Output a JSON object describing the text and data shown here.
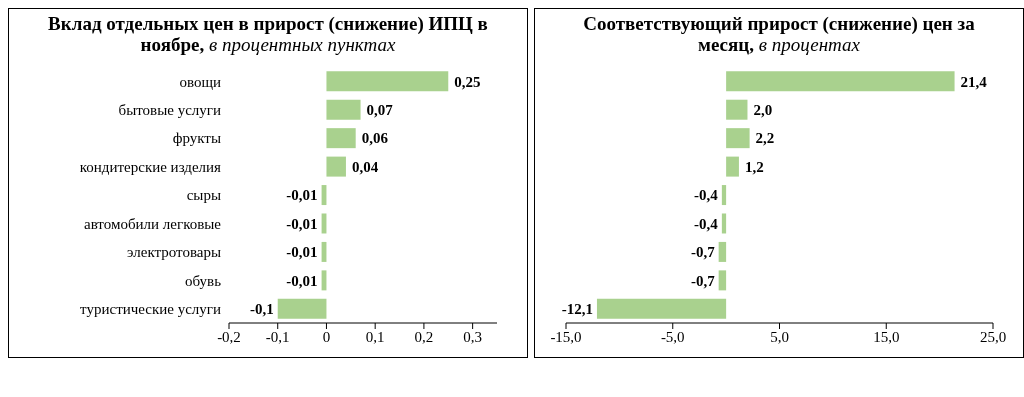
{
  "chart_data": [
    {
      "type": "bar",
      "orientation": "horizontal",
      "title": "Вклад отдельных цен в прирост (снижение) ИПЦ в ноябре,",
      "subtitle": "в процентных пунктах",
      "categories": [
        "овощи",
        "бытовые услуги",
        "фрукты",
        "кондитерские изделия",
        "сыры",
        "автомобили легковые",
        "электротовары",
        "обувь",
        "туристические услуги"
      ],
      "values": [
        0.25,
        0.07,
        0.06,
        0.04,
        -0.01,
        -0.01,
        -0.01,
        -0.01,
        -0.1
      ],
      "value_labels": [
        "0,25",
        "0,07",
        "0,06",
        "0,04",
        "-0,01",
        "-0,01",
        "-0,01",
        "-0,01",
        "-0,1"
      ],
      "color": "#a9d18e",
      "xlim": [
        -0.2,
        0.35
      ],
      "xticks": [
        {
          "value": -0.2,
          "label": "-0,2"
        },
        {
          "value": -0.1,
          "label": "-0,1"
        },
        0,
        {
          "value": 0.1,
          "label": "0,1"
        },
        {
          "value": 0.2,
          "label": "0,2"
        },
        {
          "value": 0.3,
          "label": "0,3"
        }
      ],
      "grid": false,
      "legend": false
    },
    {
      "type": "bar",
      "orientation": "horizontal",
      "title": "Соответствующий прирост (снижение) цен за месяц,",
      "subtitle": "в процентах",
      "categories": [
        null,
        null,
        null,
        null,
        null,
        null,
        null,
        null,
        null
      ],
      "values": [
        21.4,
        2.0,
        2.2,
        1.2,
        -0.4,
        -0.4,
        -0.7,
        -0.7,
        -12.1
      ],
      "value_labels": [
        "21,4",
        "2,0",
        "2,2",
        "1,2",
        "-0,4",
        "-0,4",
        "-0,7",
        "-0,7",
        "-12,1"
      ],
      "color": "#a9d18e",
      "xlim": [
        -15,
        25
      ],
      "xticks": [
        {
          "value": -15,
          "label": "-15,0"
        },
        {
          "value": -5,
          "label": "-5,0"
        },
        {
          "value": 5,
          "label": "5,0"
        },
        {
          "value": 15,
          "label": "15,0"
        },
        {
          "value": 25,
          "label": "25,0"
        }
      ],
      "grid": false,
      "legend": false
    }
  ]
}
